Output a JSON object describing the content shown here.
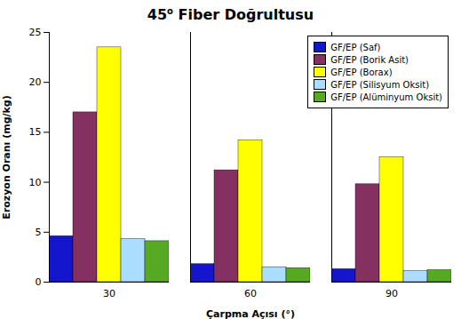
{
  "chart_data": {
    "type": "bar",
    "title": "45o Fiber Doğrultusu",
    "xlabel": "Çarpma Açısı (°)",
    "ylabel": "Erozyon Oranı (mg/kg)",
    "categories": [
      "30",
      "60",
      "90"
    ],
    "series": [
      {
        "name": "GF/EP (Saf)",
        "color": "#1515CC",
        "values": [
          4.6,
          1.8,
          1.3
        ]
      },
      {
        "name": "GF/EP (Borik Asit)",
        "color": "#843060",
        "values": [
          17.0,
          11.2,
          9.8
        ]
      },
      {
        "name": "GF/EP (Borax)",
        "color": "#FFFF00",
        "values": [
          23.5,
          14.2,
          12.5
        ]
      },
      {
        "name": "GF/EP (Silisyum Oksit)",
        "color": "#AADDFF",
        "values": [
          4.3,
          1.5,
          1.1
        ]
      },
      {
        "name": "GF/EP (Alüminyum Oksit)",
        "color": "#55AA22",
        "values": [
          4.1,
          1.4,
          1.2
        ]
      }
    ],
    "ylim": [
      0,
      25
    ],
    "yticks": [
      0,
      5,
      10,
      15,
      20,
      25
    ],
    "grid": false,
    "legend": "upper right"
  }
}
